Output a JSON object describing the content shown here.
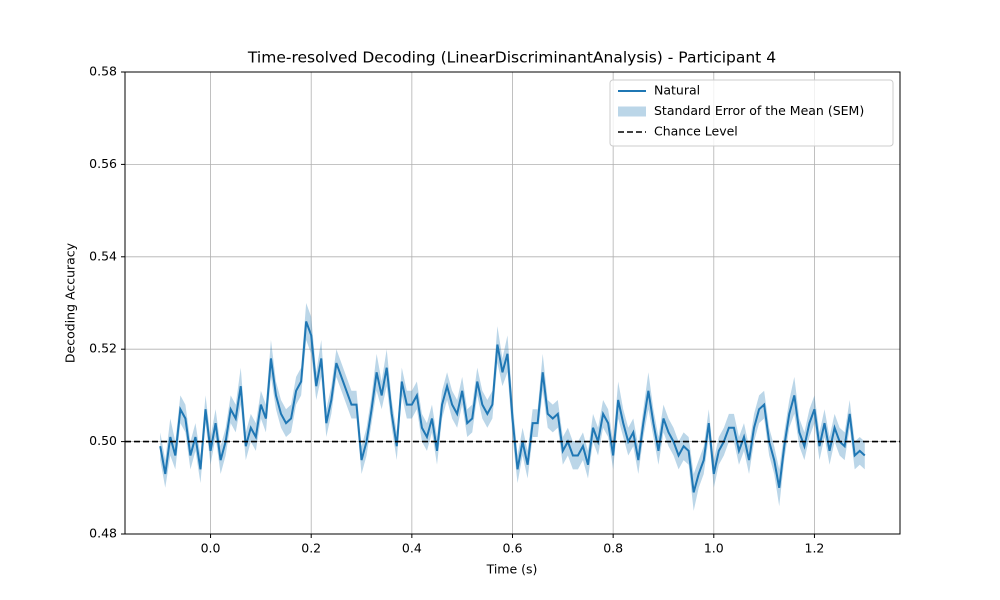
{
  "chart_data": {
    "type": "line",
    "title": "Time-resolved Decoding (LinearDiscriminantAnalysis) - Participant 4",
    "x_label": "Time (s)",
    "y_label": "Decoding Accuracy",
    "xlim": [
      -0.17,
      1.37
    ],
    "ylim": [
      0.48,
      0.58
    ],
    "xticks": [
      {
        "value": 0,
        "label": "0.0"
      },
      0.2,
      0.4,
      0.6,
      0.8,
      {
        "value": 1,
        "label": "1.0"
      },
      1.2
    ],
    "yticks": [
      0.48,
      {
        "value": 0.5,
        "label": "0.50"
      },
      0.52,
      0.54,
      0.56,
      0.58
    ],
    "grid": true,
    "legend": "upper right",
    "x": [
      -0.1,
      -0.09,
      -0.08,
      -0.07,
      -0.06,
      -0.05,
      -0.04,
      -0.03,
      -0.02,
      -0.01,
      0,
      0.01,
      0.02,
      0.03,
      0.04,
      0.05,
      0.06,
      0.07,
      0.08,
      0.09,
      0.1,
      0.11,
      0.12,
      0.13,
      0.14,
      0.15,
      0.16,
      0.17,
      0.18,
      0.19,
      0.2,
      0.21,
      0.22,
      0.23,
      0.24,
      0.25,
      0.26,
      0.27,
      0.28,
      0.29,
      0.3,
      0.31,
      0.32,
      0.33,
      0.34,
      0.35,
      0.36,
      0.37,
      0.38,
      0.39,
      0.4,
      0.41,
      0.42,
      0.43,
      0.44,
      0.45,
      0.46,
      0.47,
      0.48,
      0.49,
      0.5,
      0.51,
      0.52,
      0.53,
      0.54,
      0.55,
      0.56,
      0.57,
      0.58,
      0.59,
      0.6,
      0.61,
      0.62,
      0.63,
      0.64,
      0.65,
      0.66,
      0.67,
      0.68,
      0.69,
      0.7,
      0.71,
      0.72,
      0.73,
      0.74,
      0.75,
      0.76,
      0.77,
      0.78,
      0.79,
      0.8,
      0.81,
      0.82,
      0.83,
      0.84,
      0.85,
      0.86,
      0.87,
      0.88,
      0.89,
      0.9,
      0.91,
      0.92,
      0.93,
      0.94,
      0.95,
      0.96,
      0.97,
      0.98,
      0.99,
      1,
      1.01,
      1.02,
      1.03,
      1.04,
      1.05,
      1.06,
      1.07,
      1.08,
      1.09,
      1.1,
      1.11,
      1.12,
      1.13,
      1.14,
      1.15,
      1.16,
      1.17,
      1.18,
      1.19,
      1.2,
      1.21,
      1.22,
      1.23,
      1.24,
      1.25,
      1.26,
      1.27,
      1.28,
      1.29,
      1.3
    ],
    "series": [
      {
        "name": "Natural",
        "color": "#1f77b4",
        "values": [
          0.499,
          0.493,
          0.501,
          0.497,
          0.507,
          0.505,
          0.497,
          0.501,
          0.494,
          0.507,
          0.498,
          0.504,
          0.496,
          0.5,
          0.507,
          0.505,
          0.512,
          0.499,
          0.503,
          0.501,
          0.508,
          0.505,
          0.518,
          0.51,
          0.506,
          0.504,
          0.505,
          0.511,
          0.513,
          0.526,
          0.523,
          0.512,
          0.518,
          0.504,
          0.509,
          0.517,
          0.514,
          0.511,
          0.508,
          0.508,
          0.496,
          0.5,
          0.507,
          0.515,
          0.51,
          0.516,
          0.506,
          0.499,
          0.513,
          0.508,
          0.508,
          0.51,
          0.503,
          0.501,
          0.505,
          0.498,
          0.508,
          0.512,
          0.508,
          0.506,
          0.511,
          0.504,
          0.505,
          0.513,
          0.508,
          0.506,
          0.508,
          0.521,
          0.515,
          0.519,
          0.505,
          0.494,
          0.5,
          0.495,
          0.504,
          0.504,
          0.515,
          0.506,
          0.505,
          0.506,
          0.498,
          0.5,
          0.497,
          0.497,
          0.499,
          0.495,
          0.503,
          0.5,
          0.506,
          0.504,
          0.497,
          0.509,
          0.504,
          0.5,
          0.502,
          0.496,
          0.504,
          0.511,
          0.504,
          0.498,
          0.505,
          0.502,
          0.5,
          0.497,
          0.499,
          0.498,
          0.489,
          0.493,
          0.496,
          0.504,
          0.493,
          0.498,
          0.5,
          0.503,
          0.503,
          0.498,
          0.501,
          0.496,
          0.503,
          0.507,
          0.508,
          0.5,
          0.496,
          0.49,
          0.499,
          0.506,
          0.51,
          0.502,
          0.499,
          0.504,
          0.507,
          0.499,
          0.504,
          0.498,
          0.503,
          0.5,
          0.499,
          0.506,
          0.497,
          0.498,
          0.497
        ],
        "errors": [
          0.003,
          0.003,
          0.004,
          0.003,
          0.003,
          0.003,
          0.003,
          0.003,
          0.003,
          0.003,
          0.003,
          0.003,
          0.003,
          0.003,
          0.003,
          0.003,
          0.004,
          0.003,
          0.003,
          0.003,
          0.003,
          0.003,
          0.004,
          0.003,
          0.003,
          0.003,
          0.003,
          0.003,
          0.003,
          0.004,
          0.004,
          0.003,
          0.004,
          0.003,
          0.003,
          0.003,
          0.003,
          0.003,
          0.003,
          0.003,
          0.003,
          0.003,
          0.003,
          0.004,
          0.003,
          0.004,
          0.003,
          0.003,
          0.003,
          0.003,
          0.003,
          0.003,
          0.003,
          0.003,
          0.003,
          0.003,
          0.003,
          0.003,
          0.003,
          0.003,
          0.003,
          0.003,
          0.003,
          0.003,
          0.003,
          0.003,
          0.003,
          0.004,
          0.003,
          0.004,
          0.004,
          0.003,
          0.003,
          0.003,
          0.003,
          0.003,
          0.004,
          0.003,
          0.003,
          0.003,
          0.003,
          0.003,
          0.003,
          0.003,
          0.003,
          0.003,
          0.003,
          0.003,
          0.003,
          0.003,
          0.003,
          0.004,
          0.003,
          0.003,
          0.003,
          0.003,
          0.003,
          0.004,
          0.003,
          0.003,
          0.003,
          0.003,
          0.003,
          0.003,
          0.003,
          0.003,
          0.004,
          0.003,
          0.003,
          0.003,
          0.003,
          0.003,
          0.003,
          0.003,
          0.003,
          0.003,
          0.003,
          0.003,
          0.003,
          0.003,
          0.003,
          0.003,
          0.003,
          0.004,
          0.003,
          0.003,
          0.004,
          0.003,
          0.003,
          0.003,
          0.003,
          0.003,
          0.003,
          0.003,
          0.003,
          0.003,
          0.003,
          0.003,
          0.003,
          0.003,
          0.003
        ],
        "errors_name": "Standard Error of the Mean (SEM)",
        "errors_color": "#1f77b4"
      }
    ],
    "hline": {
      "name": "Chance Level",
      "value": 0.5,
      "color": "#000000",
      "dashed": true
    }
  }
}
